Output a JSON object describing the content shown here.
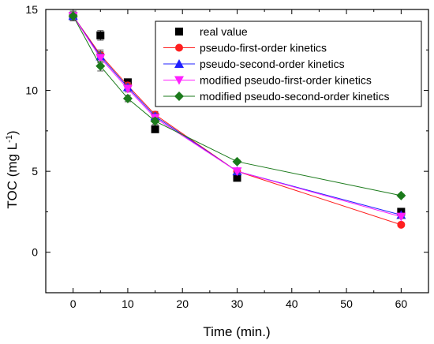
{
  "chart_data": {
    "type": "scatter",
    "x": [
      0,
      5,
      10,
      15,
      30,
      60
    ],
    "xlabel": "Time (min.)",
    "ylabel": "TOC (mg L",
    "ylabel_sup": "-1",
    "ylabel_close": ")",
    "xlim": [
      -5,
      65
    ],
    "ylim": [
      -2.5,
      15
    ],
    "xticks": [
      "0",
      "10",
      "20",
      "30",
      "40",
      "50",
      "60"
    ],
    "yticks": [
      "0",
      "5",
      "10",
      "15"
    ],
    "grid": false,
    "legend_position": "top-right",
    "series": [
      {
        "name": "real value",
        "marker": "square",
        "color": "#000000",
        "line": false,
        "values": [
          14.6,
          13.4,
          10.5,
          7.6,
          4.6,
          2.5
        ],
        "errors": [
          0.3,
          0.3,
          0.2,
          0.2,
          0.1,
          0.1
        ]
      },
      {
        "name": "pseudo-first-order kinetics",
        "marker": "circle",
        "color": "#ff2020",
        "line": true,
        "values": [
          14.6,
          12.2,
          10.3,
          8.5,
          5.0,
          1.7
        ],
        "errors": [
          0.3,
          0.3,
          0.2,
          0.2,
          0.1,
          0.1
        ]
      },
      {
        "name": "pseudo-second-order kinetics",
        "marker": "triangle-up",
        "color": "#2020ff",
        "line": true,
        "values": [
          14.6,
          12.1,
          10.2,
          8.4,
          5.0,
          2.3
        ],
        "errors": [
          0.3,
          0.3,
          0.2,
          0.2,
          0.1,
          0.1
        ]
      },
      {
        "name": "modified pseudo-first-order kinetics",
        "marker": "triangle-down",
        "color": "#ff20ff",
        "line": true,
        "values": [
          14.6,
          12.0,
          10.1,
          8.3,
          5.0,
          2.2
        ],
        "errors": [
          0.3,
          0.3,
          0.2,
          0.2,
          0.1,
          0.1
        ]
      },
      {
        "name": "modified pseudo-second-order kinetics",
        "marker": "diamond",
        "color": "#1b7a1b",
        "line": true,
        "values": [
          14.6,
          11.5,
          9.5,
          8.1,
          5.6,
          3.5
        ],
        "errors": [
          0.3,
          0.3,
          0.2,
          0.2,
          0.1,
          0.1
        ]
      }
    ]
  }
}
